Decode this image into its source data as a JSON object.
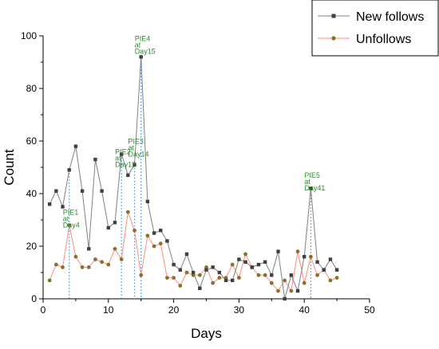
{
  "chart_data": {
    "type": "line",
    "xlabel": "Days",
    "ylabel": "Count",
    "xlim": [
      0,
      50
    ],
    "ylim": [
      0,
      100
    ],
    "x_ticks": [
      0,
      10,
      20,
      30,
      40,
      50
    ],
    "y_ticks": [
      0,
      20,
      40,
      60,
      80,
      100
    ],
    "grid": false,
    "legend_position": "top-right",
    "series": [
      {
        "name": "New follows",
        "color": "#808080",
        "marker": "square",
        "marker_color": "#404040",
        "x": [
          1,
          2,
          3,
          4,
          5,
          6,
          7,
          8,
          9,
          10,
          11,
          12,
          13,
          14,
          15,
          16,
          17,
          18,
          19,
          20,
          21,
          22,
          23,
          24,
          25,
          26,
          27,
          28,
          29,
          30,
          31,
          32,
          33,
          34,
          35,
          36,
          37,
          38,
          39,
          40,
          41,
          42,
          43,
          44,
          45
        ],
        "y": [
          36,
          41,
          35,
          49,
          58,
          41,
          19,
          53,
          41,
          27,
          29,
          55,
          47,
          51,
          92,
          37,
          25,
          26,
          22,
          13,
          11,
          17,
          10,
          4,
          11,
          12,
          10,
          7,
          7,
          15,
          14,
          12,
          13,
          14,
          9,
          18,
          0,
          9,
          3,
          16,
          42,
          14,
          11,
          15,
          11
        ]
      },
      {
        "name": "Unfollows",
        "color": "#ff8c7a",
        "marker": "circle",
        "marker_color": "#8b6f2e",
        "x": [
          1,
          2,
          3,
          4,
          5,
          6,
          7,
          8,
          9,
          10,
          11,
          12,
          13,
          14,
          15,
          16,
          17,
          18,
          19,
          20,
          21,
          22,
          23,
          24,
          25,
          26,
          27,
          28,
          29,
          30,
          31,
          32,
          33,
          34,
          35,
          36,
          37,
          38,
          39,
          40,
          41,
          42,
          43,
          44,
          45
        ],
        "y": [
          7,
          13,
          12,
          28,
          16,
          12,
          12,
          15,
          14,
          13,
          19,
          15,
          33,
          26,
          9,
          24,
          20,
          21,
          8,
          8,
          5,
          10,
          9,
          9,
          12,
          6,
          8,
          8,
          13,
          8,
          17,
          12,
          9,
          9,
          6,
          3,
          7,
          3,
          18,
          6,
          16,
          9,
          11,
          7,
          8
        ]
      }
    ],
    "annotations": [
      {
        "lines": [
          "PIE1",
          "at",
          "Day4"
        ],
        "day": 4,
        "label_y": 32
      },
      {
        "lines": [
          "PIE2",
          "at",
          "Day12"
        ],
        "day": 12,
        "label_y": 55
      },
      {
        "lines": [
          "PIE3",
          "at",
          "Day14"
        ],
        "day": 14,
        "label_y": 59
      },
      {
        "lines": [
          "PIE4",
          "at",
          "Day15"
        ],
        "day": 15,
        "label_y": 98
      },
      {
        "lines": [
          "PIE5",
          "at",
          "Day41"
        ],
        "day": 41,
        "label_y": 46
      }
    ],
    "annotation_line_color": "#3b8fd9"
  }
}
